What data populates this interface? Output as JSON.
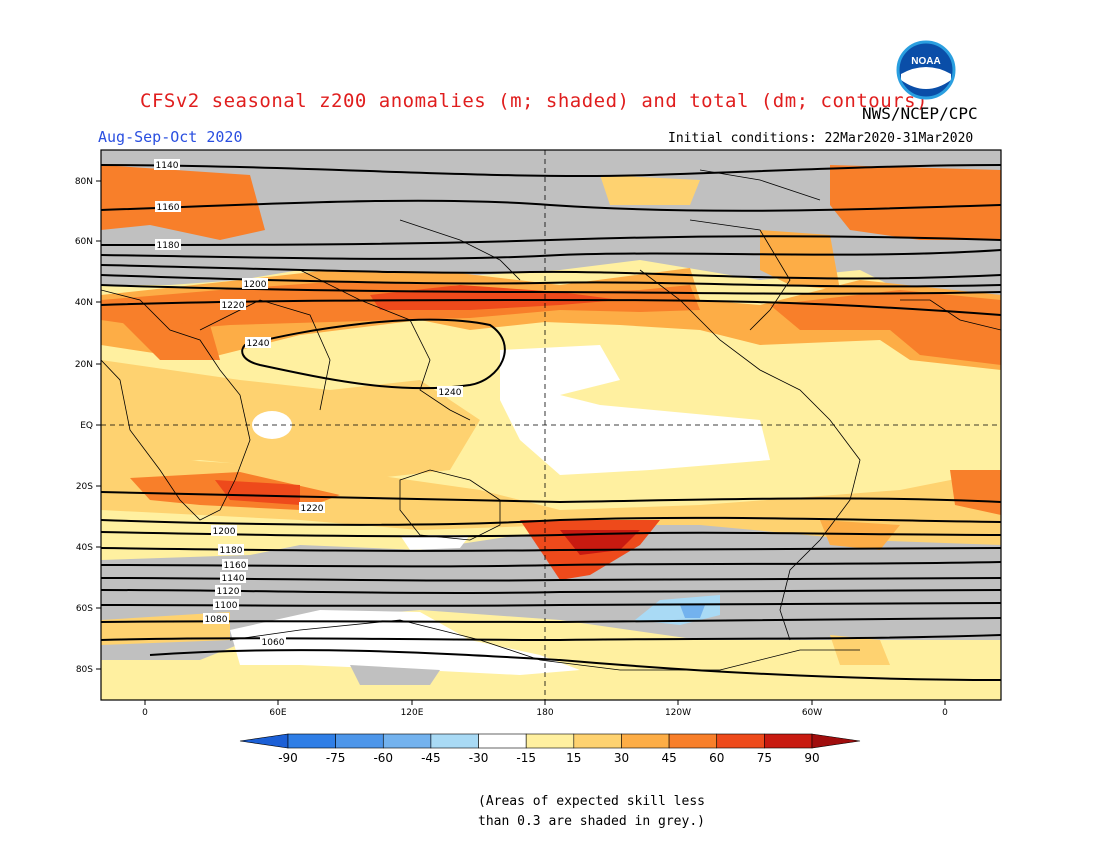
{
  "title": "CFSv2 seasonal z200 anomalies (m; shaded) and total (dm; contours)",
  "season": "Aug-Sep-Oct 2020",
  "agency": "NWS/NCEP/CPC",
  "initial_conditions": "Initial conditions: 22Mar2020-31Mar2020",
  "logo_text": "NOAA",
  "note_line1": "(Areas of expected skill less",
  "note_line2": "than 0.3 are shaded in grey.)",
  "map": {
    "lat_ticks": [
      "80N",
      "60N",
      "40N",
      "20N",
      "EQ",
      "20S",
      "40S",
      "60S",
      "80S"
    ],
    "lon_ticks": [
      "0",
      "60E",
      "120E",
      "180",
      "120W",
      "60W",
      "0"
    ],
    "contour_labels": [
      "1140",
      "1160",
      "1180",
      "1200",
      "1220",
      "1240",
      "1220",
      "1200",
      "1180",
      "1160",
      "1140",
      "1120",
      "1100",
      "1080",
      "1060"
    ]
  },
  "colorbar": {
    "ticks": [
      "-90",
      "-75",
      "-60",
      "-45",
      "-30",
      "-15",
      "15",
      "30",
      "45",
      "60",
      "75",
      "90"
    ],
    "colors": [
      "#1b5fd6",
      "#2f7ee6",
      "#4d96ea",
      "#73b2ee",
      "#a9daf5",
      "#ffffff",
      "#fff0a0",
      "#fed270",
      "#fdad46",
      "#f87f2a",
      "#ee4a1b",
      "#c81a10",
      "#a00d0d"
    ]
  },
  "legend_colors": {
    "grey_low_skill": "#c0c0c0",
    "title_red": "#e01e1e",
    "season_blue": "#2a4fe0"
  }
}
